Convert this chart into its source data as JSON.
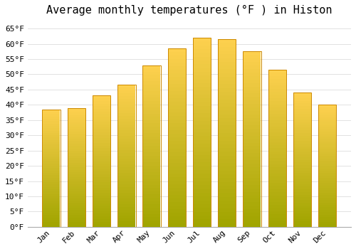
{
  "title": "Average monthly temperatures (°F ) in Histon",
  "months": [
    "Jan",
    "Feb",
    "Mar",
    "Apr",
    "May",
    "Jun",
    "Jul",
    "Aug",
    "Sep",
    "Oct",
    "Nov",
    "Dec"
  ],
  "values": [
    38.5,
    39.0,
    43.0,
    46.5,
    53.0,
    58.5,
    62.0,
    61.5,
    57.5,
    51.5,
    44.0,
    40.0
  ],
  "bar_color_top": "#FFD050",
  "bar_color_bottom": "#FFA500",
  "bar_edge_color": "#CC8800",
  "background_color": "#FFFFFF",
  "grid_color": "#DDDDDD",
  "ylim": [
    0,
    68
  ],
  "yticks": [
    0,
    5,
    10,
    15,
    20,
    25,
    30,
    35,
    40,
    45,
    50,
    55,
    60,
    65
  ],
  "title_fontsize": 11,
  "tick_fontsize": 8,
  "font_family": "monospace"
}
